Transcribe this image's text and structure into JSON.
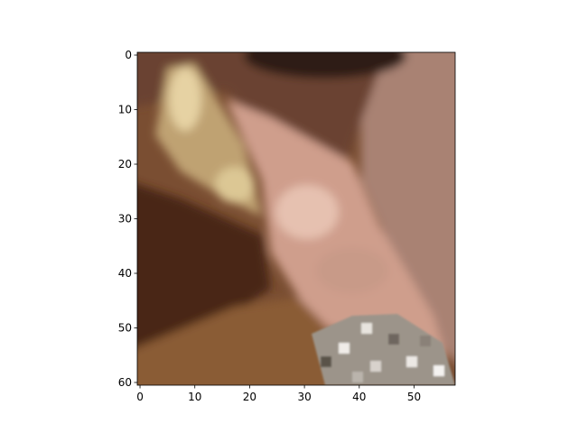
{
  "chart_data": {
    "type": "image",
    "xlim": [
      -0.5,
      57.5
    ],
    "ylim": [
      60.5,
      -0.5
    ],
    "xticks": [
      0,
      10,
      20,
      30,
      40,
      50
    ],
    "yticks": [
      0,
      10,
      20,
      30,
      40,
      50,
      60
    ]
  }
}
